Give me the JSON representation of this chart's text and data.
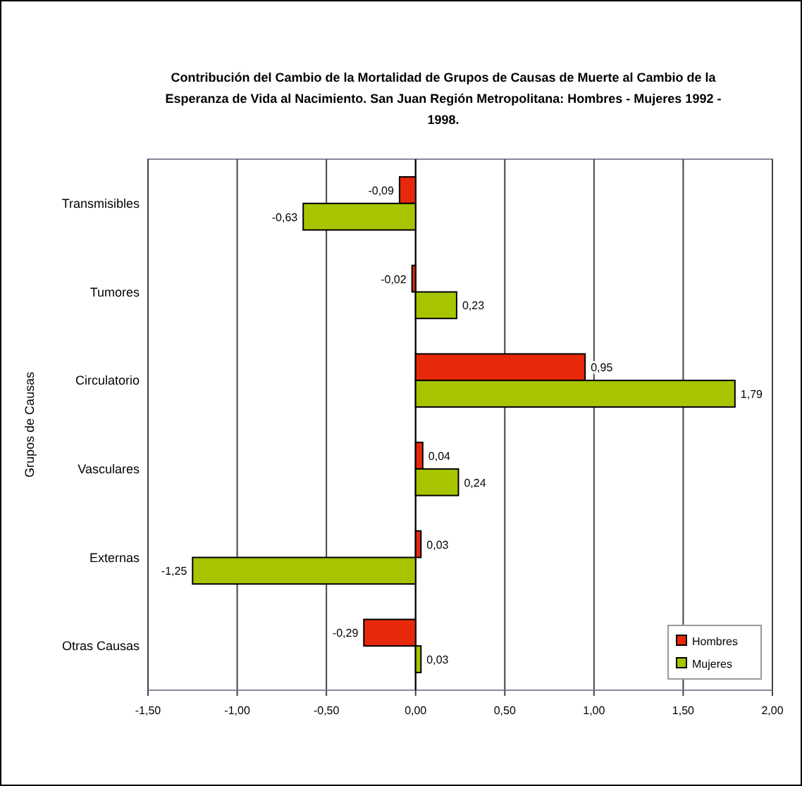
{
  "chart_data": {
    "type": "bar",
    "orientation": "horizontal",
    "title": "Contribución del Cambio de la Mortalidad de Grupos de Causas de Muerte al Cambio de la Esperanza de Vida al Nacimiento. San Juan Región Metropolitana:  Hombres - Mujeres   1992  - 1998.",
    "ylabel": "Grupos de Causas",
    "categories": [
      "Transmisibles",
      "Tumores",
      "Circulatorio",
      "Vasculares",
      "Externas",
      "Otras Causas"
    ],
    "series": [
      {
        "name": "Hombres",
        "color": "#e8280a",
        "values": [
          -0.09,
          -0.02,
          0.95,
          0.04,
          0.03,
          -0.29
        ],
        "value_labels": [
          "-0,09",
          "-0,02",
          "0,95",
          "0,04",
          "0,03",
          "-0,29"
        ]
      },
      {
        "name": "Mujeres",
        "color": "#a8c400",
        "values": [
          -0.63,
          0.23,
          1.79,
          0.24,
          -1.25,
          0.03
        ],
        "value_labels": [
          "-0,63",
          "0,23",
          "1,79",
          "0,24",
          "-1,25",
          "0,03"
        ]
      }
    ],
    "xlim": [
      -1.5,
      2.0
    ],
    "xticks": [
      {
        "value": -1.5,
        "label": "-1,50"
      },
      {
        "value": -1,
        "label": "-1,00"
      },
      {
        "value": -0.5,
        "label": "-0,50"
      },
      {
        "value": 0,
        "label": "0,00"
      },
      {
        "value": 0.5,
        "label": "0,50"
      },
      {
        "value": 1,
        "label": "1,00"
      },
      {
        "value": 1.5,
        "label": "1,50"
      },
      {
        "value": 2,
        "label": "2,00"
      }
    ],
    "grid": "x",
    "legend": "bottom right"
  }
}
